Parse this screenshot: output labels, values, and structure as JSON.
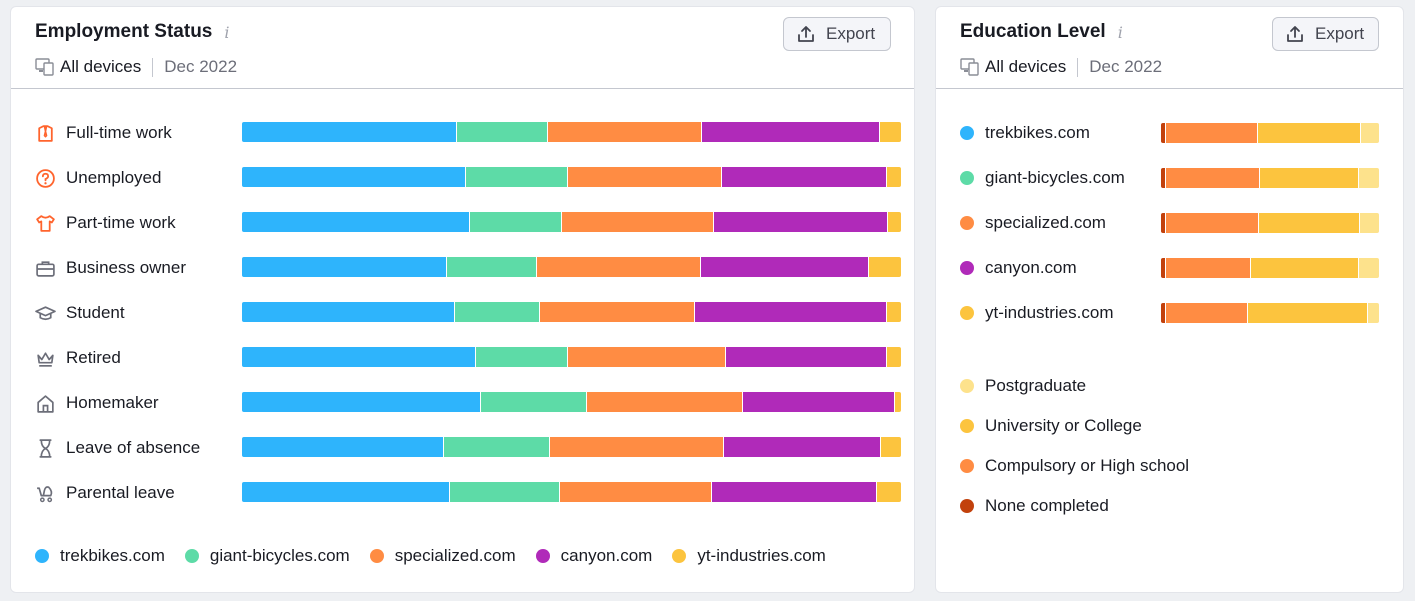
{
  "colors": {
    "trekbikes": "#2eb4fc",
    "giant": "#5ddba7",
    "specialized": "#ff8c43",
    "canyon": "#b02ab9",
    "yt": "#fcc43e",
    "postgraduate": "#fde28c",
    "university": "#fcc43e",
    "compulsory": "#ff8c43",
    "none": "#c2410c"
  },
  "employment": {
    "title": "Employment Status",
    "info_icon": "i",
    "devices": "All devices",
    "date": "Dec 2022",
    "export_label": "Export",
    "chart_data": {
      "type": "bar",
      "stacked": true,
      "orientation": "horizontal",
      "categories": [
        "Full-time work",
        "Unemployed",
        "Part-time work",
        "Business owner",
        "Student",
        "Retired",
        "Homemaker",
        "Leave of absence",
        "Parental leave"
      ],
      "icons": [
        "shirt-tie-icon",
        "question-circle-icon",
        "tshirt-icon",
        "briefcase-icon",
        "graduation-cap-icon",
        "crown-icon",
        "house-icon",
        "hourglass-icon",
        "stroller-icon"
      ],
      "series": [
        {
          "name": "trekbikes.com",
          "color": "#2eb4fc",
          "values": [
            32.6,
            34.0,
            34.6,
            31.1,
            32.3,
            35.5,
            36.2,
            30.7,
            31.5
          ]
        },
        {
          "name": "giant-bicycles.com",
          "color": "#5ddba7",
          "values": [
            13.8,
            15.5,
            14.0,
            13.7,
            12.9,
            14.0,
            16.1,
            16.1,
            16.7
          ]
        },
        {
          "name": "specialized.com",
          "color": "#ff8c43",
          "values": [
            23.4,
            23.4,
            23.1,
            24.9,
            23.5,
            24.0,
            23.7,
            26.4,
            23.1
          ]
        },
        {
          "name": "canyon.com",
          "color": "#b02ab9",
          "values": [
            27.0,
            25.0,
            26.3,
            25.5,
            29.2,
            24.4,
            23.1,
            23.7,
            25.0
          ]
        },
        {
          "name": "yt-industries.com",
          "color": "#fcc43e",
          "values": [
            3.2,
            2.1,
            2.0,
            4.8,
            2.1,
            2.1,
            0.9,
            3.1,
            3.7
          ]
        }
      ]
    },
    "legend": [
      "trekbikes.com",
      "giant-bicycles.com",
      "specialized.com",
      "canyon.com",
      "yt-industries.com"
    ]
  },
  "education": {
    "title": "Education Level",
    "info_icon": "i",
    "devices": "All devices",
    "date": "Dec 2022",
    "export_label": "Export",
    "chart_data": {
      "type": "bar",
      "stacked": true,
      "orientation": "horizontal",
      "categories": [
        "trekbikes.com",
        "giant-bicycles.com",
        "specialized.com",
        "canyon.com",
        "yt-industries.com"
      ],
      "category_colors": [
        "#2eb4fc",
        "#5ddba7",
        "#ff8c43",
        "#b02ab9",
        "#fcc43e"
      ],
      "series": [
        {
          "name": "None completed",
          "color": "#c2410c",
          "values": [
            2.3,
            2.3,
            2.3,
            2.3,
            2.3
          ]
        },
        {
          "name": "Compulsory or High school",
          "color": "#ff8c43",
          "values": [
            42.0,
            43.0,
            42.5,
            39.0,
            37.5
          ]
        },
        {
          "name": "University or College",
          "color": "#fcc43e",
          "values": [
            47.5,
            45.5,
            46.5,
            49.5,
            55.0
          ]
        },
        {
          "name": "Postgraduate",
          "color": "#fde28c",
          "values": [
            8.2,
            9.2,
            8.7,
            9.2,
            5.2
          ]
        }
      ]
    },
    "legend": [
      "Postgraduate",
      "University or College",
      "Compulsory or High school",
      "None completed"
    ]
  }
}
